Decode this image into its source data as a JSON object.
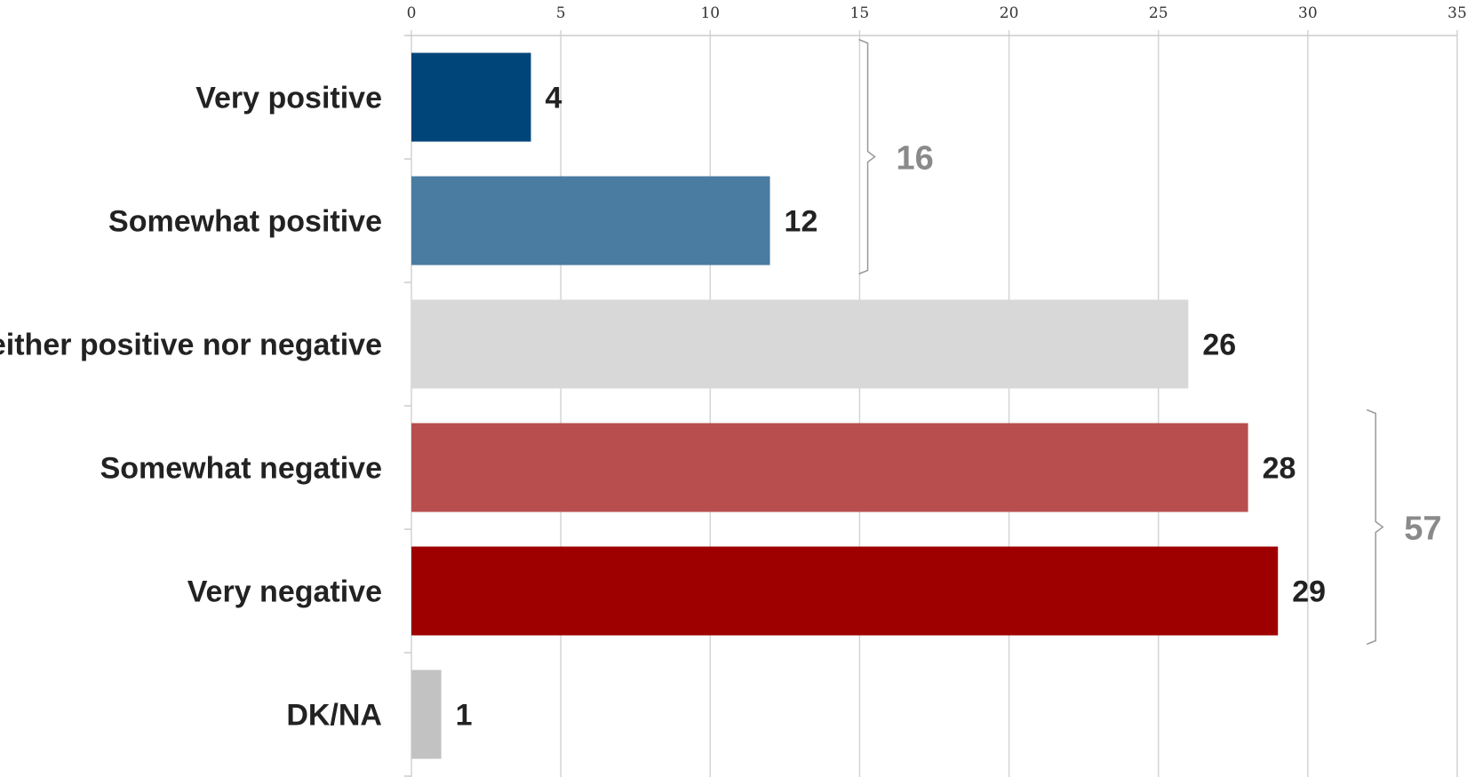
{
  "chart_data": {
    "type": "bar",
    "orientation": "horizontal",
    "categories": [
      "Very positive",
      "Somewhat positive",
      "Neither positive nor negative",
      "Somewhat negative",
      "Very negative",
      "DK/NA"
    ],
    "values": [
      4,
      12,
      26,
      28,
      29,
      1
    ],
    "colors": [
      "#00457a",
      "#4a7ba1",
      "#d8d8d8",
      "#b94e4e",
      "#9e0000",
      "#c2c2c2"
    ],
    "xlim": [
      0,
      35
    ],
    "xticks": [
      0,
      5,
      10,
      15,
      20,
      25,
      30,
      35
    ],
    "xaxis_position": "top",
    "grid": true,
    "title": "",
    "xlabel": "",
    "ylabel": "",
    "brackets": [
      {
        "label": "16",
        "from": "Very positive",
        "to": "Somewhat positive",
        "value": 16
      },
      {
        "label": "57",
        "from": "Somewhat negative",
        "to": "Very negative",
        "value": 57
      }
    ]
  }
}
